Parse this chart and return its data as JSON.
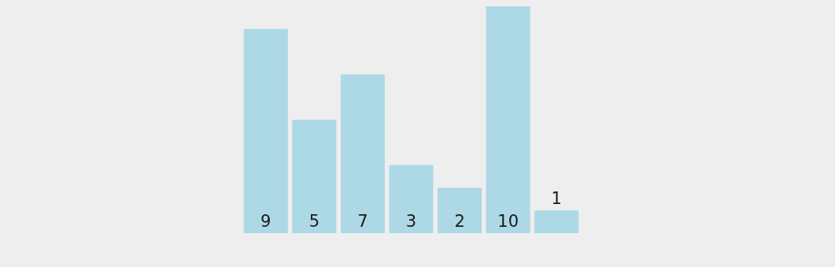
{
  "chart_data": {
    "type": "bar",
    "categories": [
      null,
      null,
      null,
      null,
      null,
      null,
      null
    ],
    "values": [
      9,
      5,
      7,
      3,
      2,
      10,
      1
    ],
    "color": "#add8e6",
    "data_labels": true,
    "grid": false,
    "legend": false,
    "tick_labels": false
  }
}
